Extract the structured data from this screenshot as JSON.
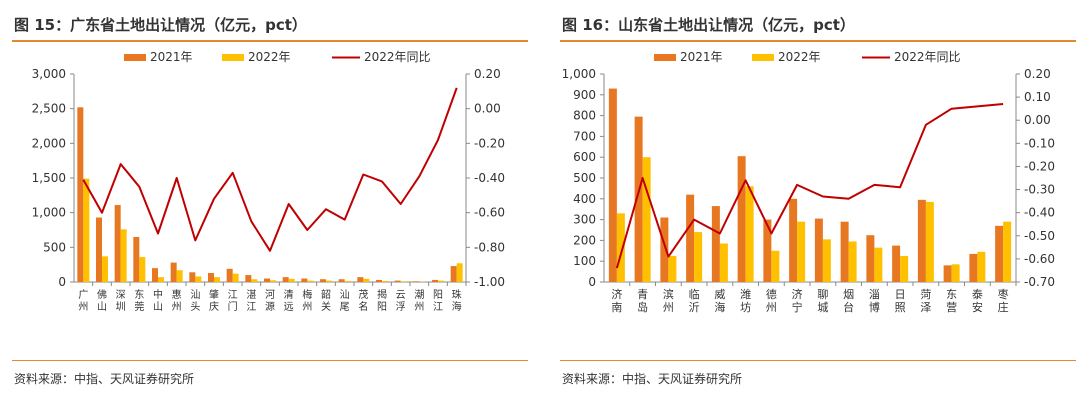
{
  "colors": {
    "bar2021": "#E87722",
    "bar2022": "#FFC000",
    "line": "#C00000",
    "accent": "#E58A2C"
  },
  "charts": [
    {
      "title": "图 15：广东省土地出让情况（亿元，pct）",
      "source": "资料来源：中指、天风证券研究所"
    },
    {
      "title": "图 16：山东省土地出让情况（亿元，pct）",
      "source": "资料来源：中指、天风证券研究所"
    }
  ],
  "chart_data": [
    {
      "type": "bar",
      "combo": "bar+line (secondary axis)",
      "title": "图 15：广东省土地出让情况（亿元，pct）",
      "categories": [
        "广州",
        "佛山",
        "深圳",
        "东莞",
        "中山",
        "惠州",
        "汕头",
        "肇庆",
        "江门",
        "湛江",
        "河源",
        "清远",
        "梅州",
        "韶关",
        "汕尾",
        "茂名",
        "揭阳",
        "云浮",
        "潮州",
        "阳江",
        "珠海"
      ],
      "series": [
        {
          "name": "2021年",
          "axis": "left",
          "values": [
            2520,
            930,
            1110,
            650,
            200,
            280,
            140,
            130,
            190,
            100,
            50,
            70,
            50,
            40,
            40,
            70,
            30,
            20,
            10,
            30,
            230
          ]
        },
        {
          "name": "2022年",
          "axis": "left",
          "values": [
            1490,
            370,
            760,
            360,
            70,
            170,
            80,
            70,
            120,
            40,
            25,
            45,
            20,
            20,
            15,
            45,
            15,
            10,
            5,
            20,
            270
          ]
        },
        {
          "name": "2022年同比",
          "axis": "right",
          "type": "line",
          "values": [
            -0.41,
            -0.6,
            -0.32,
            -0.45,
            -0.72,
            -0.4,
            -0.76,
            -0.52,
            -0.37,
            -0.65,
            -0.82,
            -0.55,
            -0.7,
            -0.58,
            -0.64,
            -0.38,
            -0.42,
            -0.55,
            -0.39,
            -0.18,
            0.12
          ]
        }
      ],
      "yleft": {
        "min": 0,
        "max": 3000,
        "ticks": [
          "0",
          "500",
          "1,000",
          "1,500",
          "2,000",
          "2,500",
          "3,000"
        ]
      },
      "yright": {
        "min": -1.0,
        "max": 0.2,
        "ticks": [
          "-1.00",
          "-0.80",
          "-0.60",
          "-0.40",
          "-0.20",
          "0.00",
          "0.20"
        ]
      },
      "legend": "top",
      "grid": false
    },
    {
      "type": "bar",
      "combo": "bar+line (secondary axis)",
      "title": "图 16：山东省土地出让情况（亿元，pct）",
      "categories": [
        "济南",
        "青岛",
        "滨州",
        "临沂",
        "威海",
        "潍坊",
        "德州",
        "济宁",
        "聊城",
        "烟台",
        "淄博",
        "日照",
        "菏泽",
        "东营",
        "泰安",
        "枣庄"
      ],
      "series": [
        {
          "name": "2021年",
          "axis": "left",
          "values": [
            930,
            795,
            310,
            420,
            365,
            605,
            300,
            400,
            305,
            290,
            225,
            175,
            395,
            80,
            135,
            270
          ]
        },
        {
          "name": "2022年",
          "axis": "left",
          "values": [
            330,
            600,
            125,
            240,
            185,
            460,
            150,
            290,
            205,
            195,
            165,
            125,
            385,
            85,
            145,
            290
          ]
        },
        {
          "name": "2022年同比",
          "axis": "right",
          "type": "line",
          "values": [
            -0.64,
            -0.25,
            -0.59,
            -0.43,
            -0.49,
            -0.26,
            -0.49,
            -0.28,
            -0.33,
            -0.34,
            -0.28,
            -0.29,
            -0.02,
            0.05,
            0.06,
            0.07
          ]
        }
      ],
      "yleft": {
        "min": 0,
        "max": 1000,
        "ticks": [
          "0",
          "100",
          "200",
          "300",
          "400",
          "500",
          "600",
          "700",
          "800",
          "900",
          "1,000"
        ]
      },
      "yright": {
        "min": -0.7,
        "max": 0.2,
        "ticks": [
          "-0.70",
          "-0.60",
          "-0.50",
          "-0.40",
          "-0.30",
          "-0.20",
          "-0.10",
          "0.00",
          "0.10",
          "0.20"
        ]
      },
      "legend": "top",
      "grid": false
    }
  ]
}
